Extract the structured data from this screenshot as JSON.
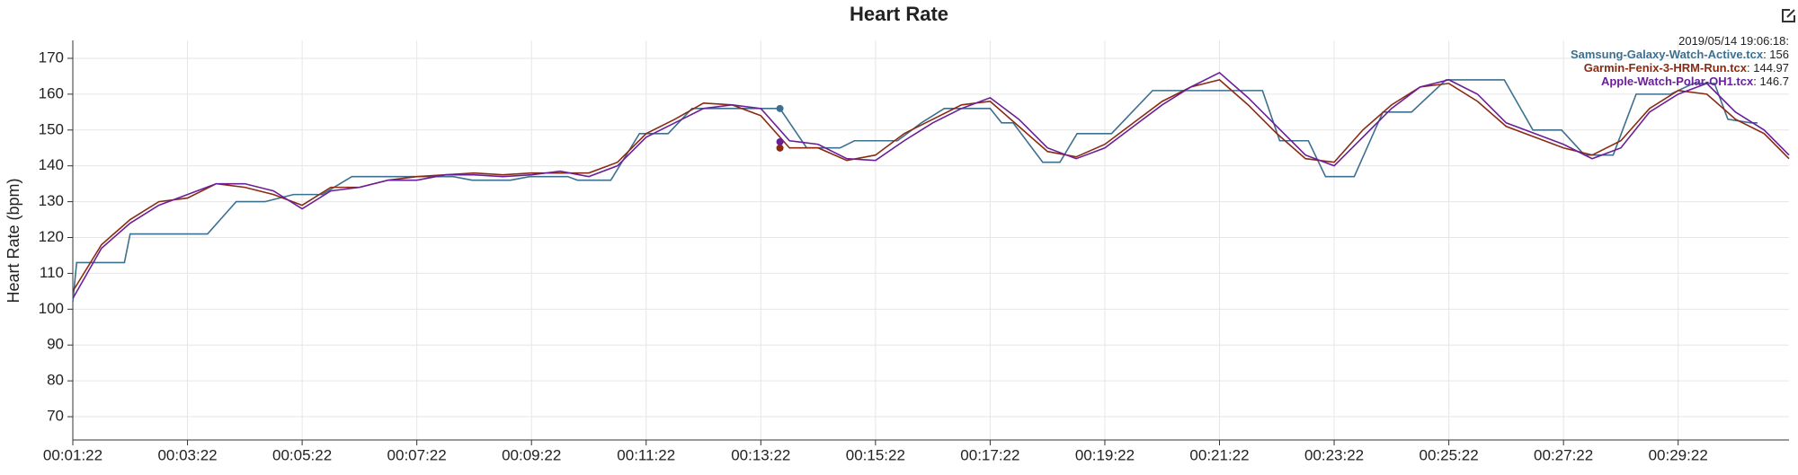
{
  "chart_data": {
    "type": "line",
    "title": "Heart Rate",
    "y_label": "Heart Rate (bpm)",
    "xlim": [
      82,
      1878
    ],
    "xticks": [
      {
        "value": 82,
        "label": "00:01:22"
      },
      {
        "value": 202,
        "label": "00:03:22"
      },
      {
        "value": 322,
        "label": "00:05:22"
      },
      {
        "value": 442,
        "label": "00:07:22"
      },
      {
        "value": 562,
        "label": "00:09:22"
      },
      {
        "value": 682,
        "label": "00:11:22"
      },
      {
        "value": 802,
        "label": "00:13:22"
      },
      {
        "value": 922,
        "label": "00:15:22"
      },
      {
        "value": 1042,
        "label": "00:17:22"
      },
      {
        "value": 1162,
        "label": "00:19:22"
      },
      {
        "value": 1282,
        "label": "00:21:22"
      },
      {
        "value": 1402,
        "label": "00:23:22"
      },
      {
        "value": 1522,
        "label": "00:25:22"
      },
      {
        "value": 1642,
        "label": "00:27:22"
      },
      {
        "value": 1762,
        "label": "00:29:22"
      }
    ],
    "ylim": [
      63.5,
      175
    ],
    "yticks": [
      70,
      80,
      90,
      100,
      110,
      120,
      130,
      140,
      150,
      160,
      170
    ],
    "grid": true,
    "series": [
      {
        "name": "Samsung-Galaxy-Watch-Active.tcx",
        "color": "#3d6f8f",
        "x": [
          82,
          86,
          136,
          142,
          223,
          253,
          283,
          313,
          343,
          374,
          480,
          500,
          540,
          560,
          600,
          610,
          645,
          675,
          705,
          730,
          822,
          850,
          885,
          900,
          945,
          970,
          994,
          1042,
          1054,
          1066,
          1097,
          1115,
          1133,
          1169,
          1212,
          1327,
          1345,
          1375,
          1393,
          1423,
          1453,
          1483,
          1519,
          1580,
          1610,
          1640,
          1664,
          1694,
          1718,
          1754,
          1778,
          1800,
          1814,
          1838,
          1845
        ],
        "values": [
          102,
          113,
          113,
          121,
          121,
          130,
          130,
          132,
          132,
          137,
          137,
          136,
          136,
          137,
          137,
          136,
          136,
          149,
          149,
          156,
          156,
          145,
          145,
          147,
          147,
          152,
          156,
          156,
          152,
          152,
          141,
          141,
          149,
          149,
          161,
          161,
          147,
          147,
          137,
          137,
          155,
          155,
          164,
          164,
          150,
          150,
          143,
          143,
          160,
          160,
          163,
          163,
          153,
          152,
          152
        ]
      },
      {
        "name": "Garmin-Fenix-3-HRM-Run.tcx",
        "color": "#8a2a12",
        "x": [
          82,
          112,
          142,
          172,
          202,
          232,
          262,
          292,
          322,
          352,
          382,
          412,
          442,
          472,
          502,
          532,
          562,
          592,
          622,
          652,
          682,
          712,
          742,
          772,
          802,
          832,
          862,
          892,
          922,
          952,
          982,
          1012,
          1042,
          1072,
          1102,
          1132,
          1162,
          1192,
          1222,
          1252,
          1282,
          1312,
          1342,
          1372,
          1402,
          1432,
          1462,
          1492,
          1522,
          1552,
          1582,
          1612,
          1642,
          1672,
          1702,
          1732,
          1762,
          1792,
          1822,
          1852,
          1878
        ],
        "values": [
          105,
          118,
          125,
          130,
          131,
          135,
          134,
          132,
          129,
          134,
          134,
          136,
          137,
          137.5,
          138,
          137.5,
          138,
          138,
          138,
          141,
          149,
          153,
          157.5,
          157,
          154,
          145,
          145,
          141.5,
          143,
          149,
          153,
          157,
          158,
          151,
          144,
          142.5,
          146,
          152,
          158,
          162,
          164,
          157,
          149,
          142,
          141,
          150,
          157,
          162,
          163,
          158,
          151,
          148,
          145,
          143,
          147,
          156,
          161,
          160,
          153,
          149,
          142
        ]
      },
      {
        "name": "Apple-Watch-Polar-OH1.tcx",
        "color": "#6a1f9a",
        "x": [
          82,
          112,
          142,
          172,
          202,
          232,
          262,
          292,
          322,
          352,
          382,
          412,
          442,
          472,
          502,
          532,
          562,
          592,
          622,
          652,
          682,
          712,
          742,
          772,
          802,
          832,
          862,
          892,
          922,
          952,
          982,
          1012,
          1042,
          1072,
          1102,
          1132,
          1162,
          1192,
          1222,
          1252,
          1282,
          1312,
          1342,
          1372,
          1402,
          1432,
          1462,
          1492,
          1522,
          1552,
          1582,
          1612,
          1642,
          1672,
          1702,
          1732,
          1762,
          1792,
          1822,
          1852,
          1878
        ],
        "values": [
          103,
          117,
          124,
          129,
          132,
          135,
          135,
          133,
          128,
          133,
          134,
          136,
          136,
          137.5,
          137.5,
          137,
          137.5,
          138.5,
          137,
          140,
          148,
          152,
          156,
          157,
          156,
          147,
          146,
          142,
          141.5,
          147,
          152,
          156,
          159,
          153,
          145,
          142,
          145,
          151,
          157,
          162,
          166,
          159,
          151,
          143,
          140,
          148,
          156,
          162,
          164,
          160,
          152,
          149,
          146,
          142,
          145,
          155,
          160,
          163,
          155,
          150,
          143
        ]
      }
    ],
    "hover": {
      "label": "2019/05/14 19:06:18:",
      "x": 822,
      "values": [
        156,
        144.97,
        146.7
      ]
    }
  }
}
